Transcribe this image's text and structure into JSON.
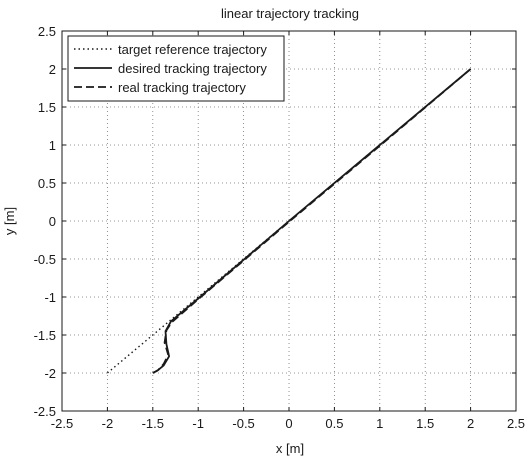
{
  "chart_data": {
    "type": "line",
    "title": "linear trajectory tracking",
    "xlabel": "x [m]",
    "ylabel": "y [m]",
    "xlim": [
      -2.5,
      2.5
    ],
    "ylim": [
      -2.5,
      2.5
    ],
    "xticks": [
      "-2.5",
      "-2",
      "-1.5",
      "-1",
      "-0.5",
      "0",
      "0.5",
      "1",
      "1.5",
      "2",
      "2.5"
    ],
    "yticks": [
      "2.5",
      "2",
      "1.5",
      "1",
      "0.5",
      "0",
      "-0.5",
      "-1",
      "-1.5",
      "-2",
      "-2.5"
    ],
    "grid": true,
    "legend_position": "top-left",
    "series": [
      {
        "name": "target reference trajectory",
        "style": "dotted",
        "color": "#1a1a1a",
        "points": [
          [
            -2.0,
            -2.0
          ],
          [
            2.0,
            2.0
          ]
        ]
      },
      {
        "name": "desired tracking trajectory",
        "style": "solid",
        "color": "#1a1a1a",
        "points": [
          [
            -1.5,
            -2.0
          ],
          [
            -1.45,
            -1.97
          ],
          [
            -1.38,
            -1.9
          ],
          [
            -1.32,
            -1.78
          ],
          [
            -1.35,
            -1.62
          ],
          [
            -1.36,
            -1.45
          ],
          [
            -1.3,
            -1.32
          ],
          [
            -1.0,
            -1.02
          ],
          [
            0.0,
            0.0
          ],
          [
            1.0,
            1.0
          ],
          [
            2.0,
            2.0
          ]
        ]
      },
      {
        "name": "real tracking trajectory",
        "style": "dashed",
        "color": "#1a1a1a",
        "points": [
          [
            -1.5,
            -2.0
          ],
          [
            -1.44,
            -1.96
          ],
          [
            -1.38,
            -1.88
          ],
          [
            -1.33,
            -1.76
          ],
          [
            -1.37,
            -1.6
          ],
          [
            -1.35,
            -1.44
          ],
          [
            -1.29,
            -1.33
          ],
          [
            -1.0,
            -1.03
          ],
          [
            0.0,
            -0.01
          ],
          [
            1.0,
            0.99
          ],
          [
            2.0,
            2.0
          ]
        ]
      }
    ]
  }
}
